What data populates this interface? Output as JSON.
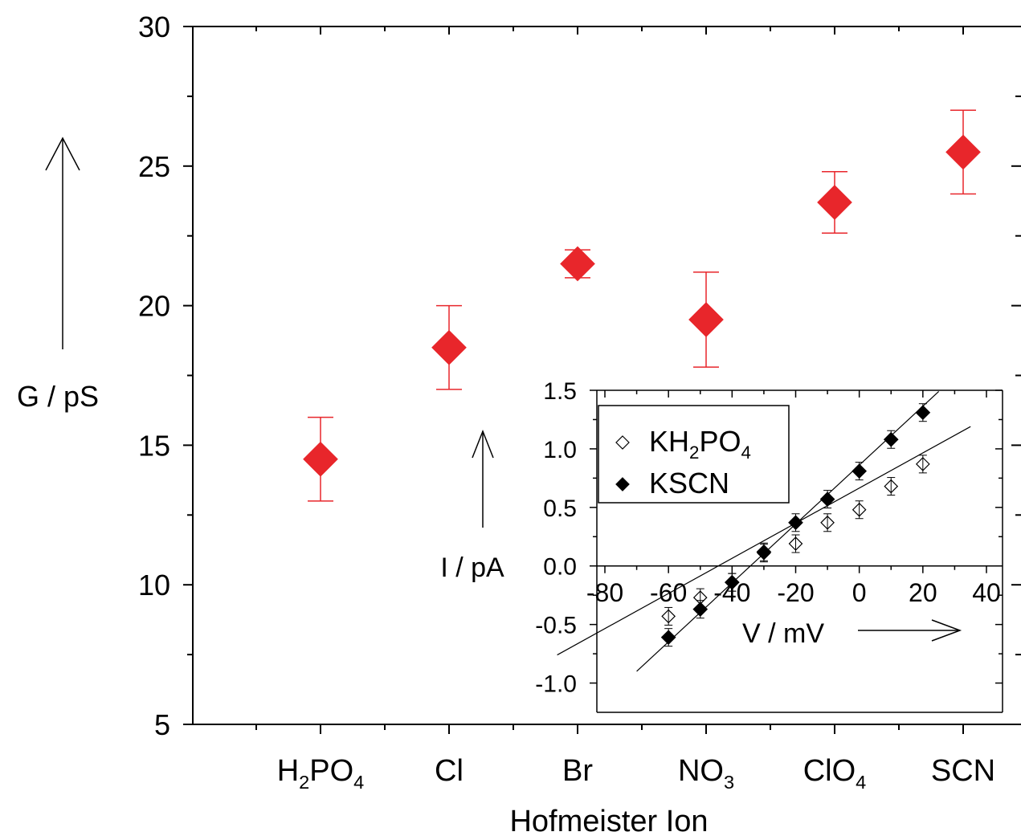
{
  "chart_data": [
    {
      "type": "scatter",
      "xlabel": "Hofmeister Ion",
      "ylabel": "G / pS",
      "ylim": [
        5,
        30
      ],
      "yticks": [
        5,
        10,
        15,
        20,
        25,
        30
      ],
      "categories": [
        {
          "base": "H",
          "sub1": "2",
          "mid": "PO",
          "sub2": "4"
        },
        {
          "base": "Cl",
          "sub1": "",
          "mid": "",
          "sub2": ""
        },
        {
          "base": "Br",
          "sub1": "",
          "mid": "",
          "sub2": ""
        },
        {
          "base": "NO",
          "sub1": "3",
          "mid": "",
          "sub2": ""
        },
        {
          "base": "ClO",
          "sub1": "4",
          "mid": "",
          "sub2": ""
        },
        {
          "base": "SCN",
          "sub1": "",
          "mid": "",
          "sub2": ""
        }
      ],
      "values": [
        14.5,
        18.5,
        21.5,
        19.5,
        23.7,
        25.5
      ],
      "errors": [
        1.5,
        1.5,
        0.5,
        1.7,
        1.1,
        1.5
      ],
      "marker": "diamond",
      "color": "#e8262b"
    },
    {
      "type": "scatter",
      "xlabel": "V / mV",
      "ylabel": "I / pA",
      "xlim": [
        -80,
        40
      ],
      "ylim": [
        -1.25,
        1.5
      ],
      "xticks": [
        -80,
        -60,
        -40,
        -20,
        0,
        20,
        40
      ],
      "yticks": [
        -1.0,
        -0.5,
        0.0,
        0.5,
        1.0,
        1.5
      ],
      "series": [
        {
          "name": "KH2PO4",
          "legend": {
            "base": "KH",
            "sub": "2",
            "mid": "PO",
            "sub2": "4"
          },
          "marker": "open-diamond",
          "x": [
            -60,
            -50,
            -40,
            -30,
            -20,
            -10,
            0,
            10,
            20
          ],
          "y": [
            -0.43,
            -0.27,
            -0.14,
            0.11,
            0.19,
            0.37,
            0.48,
            0.68,
            0.87
          ],
          "fit": {
            "x": [
              -95,
              35
            ],
            "y": [
              -0.76,
              1.19
            ]
          }
        },
        {
          "name": "KSCN",
          "legend": {
            "base": "KSCN",
            "sub": "",
            "mid": "",
            "sub2": ""
          },
          "marker": "filled-diamond",
          "x": [
            -60,
            -50,
            -40,
            -30,
            -20,
            -10,
            0,
            10,
            20
          ],
          "y": [
            -0.61,
            -0.37,
            -0.14,
            0.12,
            0.37,
            0.57,
            0.81,
            1.08,
            1.31
          ],
          "fit": {
            "x": [
              -70,
              25
            ],
            "y": [
              -0.9,
              1.49
            ]
          }
        }
      ]
    }
  ]
}
